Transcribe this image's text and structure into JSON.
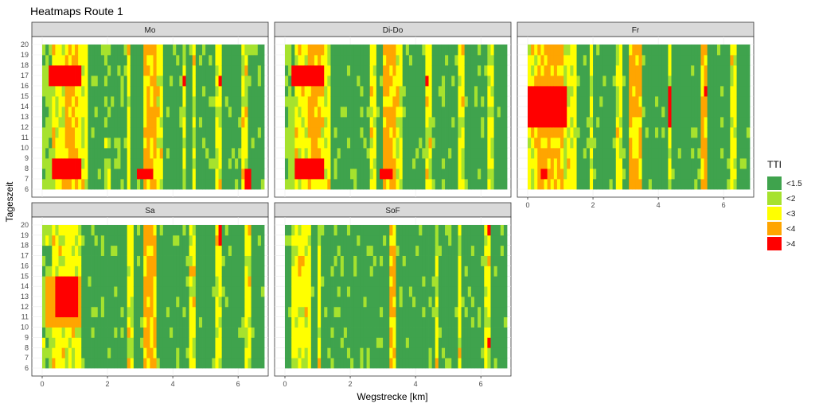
{
  "chart_data": {
    "type": "heatmap",
    "title": "Heatmaps Route 1",
    "xlabel": "Wegstrecke [km]",
    "ylabel": "Tageszeit",
    "xlim": [
      0,
      6.8
    ],
    "ylim": [
      6,
      20
    ],
    "x_ticks": [
      "0",
      "2",
      "4",
      "6"
    ],
    "y_ticks": [
      "6",
      "7",
      "8",
      "9",
      "10",
      "11",
      "12",
      "13",
      "14",
      "15",
      "16",
      "17",
      "18",
      "19",
      "20"
    ],
    "grid": true,
    "legend": {
      "title": "TTI",
      "placement": "right",
      "entries": [
        {
          "label": "<1.5",
          "color": "#3fa34d"
        },
        {
          "label": "<2",
          "color": "#a6e22e"
        },
        {
          "label": "<3",
          "color": "#ffff00"
        },
        {
          "label": "<4",
          "color": "#ffa500"
        },
        {
          "label": ">4",
          "color": "#ff0000"
        }
      ]
    },
    "panels": [
      {
        "name": "Mo",
        "bands": [
          {
            "x": [
              0.0,
              0.3
            ],
            "level": 1
          },
          {
            "x": [
              0.3,
              0.7
            ],
            "level": 2
          },
          {
            "x": [
              0.7,
              1.1
            ],
            "level": 3
          },
          {
            "x": [
              1.1,
              1.4
            ],
            "level": 2
          },
          {
            "x": [
              1.9,
              2.1
            ],
            "level": 1
          },
          {
            "x": [
              2.6,
              2.7
            ],
            "level": 2
          },
          {
            "x": [
              3.1,
              3.5
            ],
            "level": 3
          },
          {
            "x": [
              3.5,
              3.7
            ],
            "level": 2
          },
          {
            "x": [
              4.3,
              4.4
            ],
            "level": 2
          },
          {
            "x": [
              4.6,
              4.7
            ],
            "level": 2
          },
          {
            "x": [
              5.3,
              5.5
            ],
            "level": 2
          },
          {
            "x": [
              6.1,
              6.3
            ],
            "level": 2
          }
        ],
        "hotspots": [
          {
            "x": [
              0.2,
              1.2
            ],
            "t": [
              16.5,
              18.0
            ],
            "level": 4
          },
          {
            "x": [
              0.3,
              1.2
            ],
            "t": [
              7.2,
              8.8
            ],
            "level": 4
          },
          {
            "x": [
              3.3,
              3.5
            ],
            "t": [
              11.5,
              14.0
            ],
            "level": 3
          },
          {
            "x": [
              2.9,
              3.4
            ],
            "t": [
              7.5,
              8.2
            ],
            "level": 4
          },
          {
            "x": [
              4.3,
              4.4
            ],
            "t": [
              16.0,
              17.5
            ],
            "level": 4
          },
          {
            "x": [
              5.4,
              5.5
            ],
            "t": [
              16.0,
              17.5
            ],
            "level": 4
          },
          {
            "x": [
              6.2,
              6.4
            ],
            "t": [
              6.5,
              8.0
            ],
            "level": 4
          }
        ]
      },
      {
        "name": "Di-Do",
        "bands": [
          {
            "x": [
              0.0,
              0.3
            ],
            "level": 1
          },
          {
            "x": [
              0.3,
              0.7
            ],
            "level": 2
          },
          {
            "x": [
              0.7,
              1.1
            ],
            "level": 3
          },
          {
            "x": [
              1.1,
              1.4
            ],
            "level": 2
          },
          {
            "x": [
              2.6,
              2.8
            ],
            "level": 2
          },
          {
            "x": [
              3.0,
              3.4
            ],
            "level": 3
          },
          {
            "x": [
              3.4,
              3.6
            ],
            "level": 2
          },
          {
            "x": [
              4.3,
              4.5
            ],
            "level": 2
          },
          {
            "x": [
              5.3,
              5.5
            ],
            "level": 2
          },
          {
            "x": [
              6.2,
              6.4
            ],
            "level": 2
          }
        ],
        "hotspots": [
          {
            "x": [
              0.2,
              1.2
            ],
            "t": [
              16.3,
              18.0
            ],
            "level": 4
          },
          {
            "x": [
              0.3,
              1.2
            ],
            "t": [
              7.0,
              8.8
            ],
            "level": 4
          },
          {
            "x": [
              2.9,
              3.3
            ],
            "t": [
              7.5,
              8.3
            ],
            "level": 4
          },
          {
            "x": [
              4.3,
              4.4
            ],
            "t": [
              16.3,
              17.5
            ],
            "level": 4
          },
          {
            "x": [
              4.4,
              4.5
            ],
            "t": [
              7.7,
              8.2
            ],
            "level": 4
          }
        ]
      },
      {
        "name": "Fr",
        "bands": [
          {
            "x": [
              0.0,
              0.3
            ],
            "level": 2
          },
          {
            "x": [
              0.3,
              1.1
            ],
            "level": 3
          },
          {
            "x": [
              1.1,
              1.5
            ],
            "level": 2
          },
          {
            "x": [
              1.9,
              2.0
            ],
            "level": 2
          },
          {
            "x": [
              2.7,
              2.9
            ],
            "level": 2
          },
          {
            "x": [
              3.1,
              3.5
            ],
            "level": 3
          },
          {
            "x": [
              4.3,
              4.4
            ],
            "level": 2
          },
          {
            "x": [
              5.3,
              5.5
            ],
            "level": 3
          },
          {
            "x": [
              6.2,
              6.4
            ],
            "level": 2
          }
        ],
        "hotspots": [
          {
            "x": [
              0.0,
              1.2
            ],
            "t": [
              12.0,
              16.0
            ],
            "level": 4
          },
          {
            "x": [
              0.3,
              1.1
            ],
            "t": [
              16.0,
              17.0
            ],
            "level": 3
          },
          {
            "x": [
              0.3,
              1.1
            ],
            "t": [
              11.0,
              12.0
            ],
            "level": 3
          },
          {
            "x": [
              0.4,
              0.6
            ],
            "t": [
              7.5,
              8.0
            ],
            "level": 4
          },
          {
            "x": [
              3.2,
              3.5
            ],
            "t": [
              13.0,
              14.0
            ],
            "level": 3
          },
          {
            "x": [
              4.3,
              4.4
            ],
            "t": [
              12.0,
              16.0
            ],
            "level": 4
          },
          {
            "x": [
              5.4,
              5.5
            ],
            "t": [
              15.0,
              16.5
            ],
            "level": 4
          }
        ]
      },
      {
        "name": "Sa",
        "bands": [
          {
            "x": [
              0.0,
              0.3
            ],
            "level": 1
          },
          {
            "x": [
              0.3,
              1.2
            ],
            "level": 2
          },
          {
            "x": [
              2.6,
              2.8
            ],
            "level": 2
          },
          {
            "x": [
              3.1,
              3.5
            ],
            "level": 3
          },
          {
            "x": [
              4.5,
              4.7
            ],
            "level": 2
          },
          {
            "x": [
              5.3,
              5.5
            ],
            "level": 2
          },
          {
            "x": [
              6.2,
              6.4
            ],
            "level": 2
          }
        ],
        "hotspots": [
          {
            "x": [
              0.1,
              1.2
            ],
            "t": [
              10.5,
              15.2
            ],
            "level": 3
          },
          {
            "x": [
              0.4,
              1.1
            ],
            "t": [
              11.0,
              15.0
            ],
            "level": 4
          },
          {
            "x": [
              5.4,
              5.5
            ],
            "t": [
              18.5,
              20.0
            ],
            "level": 4
          },
          {
            "x": [
              6.3,
              6.4
            ],
            "t": [
              9.0,
              9.5
            ],
            "level": 4
          }
        ]
      },
      {
        "name": "SoF",
        "bands": [
          {
            "x": [
              0.2,
              0.8
            ],
            "level": 2
          },
          {
            "x": [
              1.0,
              1.1
            ],
            "level": 2
          },
          {
            "x": [
              3.2,
              3.4
            ],
            "level": 3
          },
          {
            "x": [
              4.6,
              4.7
            ],
            "level": 2
          },
          {
            "x": [
              5.3,
              5.4
            ],
            "level": 2
          },
          {
            "x": [
              6.1,
              6.3
            ],
            "level": 2
          }
        ],
        "hotspots": [
          {
            "x": [
              0.2,
              0.7
            ],
            "t": [
              13.0,
              15.0
            ],
            "level": 2
          },
          {
            "x": [
              6.2,
              6.3
            ],
            "t": [
              8.5,
              9.0
            ],
            "level": 4
          },
          {
            "x": [
              6.2,
              6.3
            ],
            "t": [
              19.0,
              20.0
            ],
            "level": 4
          },
          {
            "x": [
              5.3,
              5.4
            ],
            "t": [
              7.5,
              8.0
            ],
            "level": 3
          }
        ]
      }
    ]
  }
}
